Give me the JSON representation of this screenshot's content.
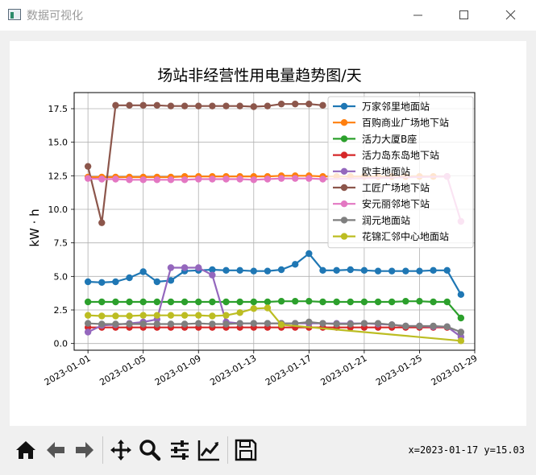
{
  "window": {
    "title": "数据可视化"
  },
  "toolbar": {
    "coordinates": "x=2023-01-17 y=15.03",
    "buttons": [
      "home",
      "back",
      "forward",
      "pan",
      "zoom",
      "configure-subplots",
      "edit-axis",
      "save"
    ]
  },
  "chart_data": {
    "type": "line",
    "title": "场站非经营性用电量趋势图/天",
    "xlabel": "",
    "ylabel": "kW·h",
    "ylabel_display": "kW · h",
    "xlim": [
      "2022-12-31",
      "2023-01-29"
    ],
    "ylim": [
      -0.5,
      18.7
    ],
    "yticks": [
      0.0,
      2.5,
      5.0,
      7.5,
      10.0,
      12.5,
      15.0,
      17.5
    ],
    "ytick_labels": [
      "0.0",
      "2.5",
      "5.0",
      "7.5",
      "10.0",
      "12.5",
      "15.0",
      "17.5"
    ],
    "xticks": [
      "2023-01-01",
      "2023-01-05",
      "2023-01-09",
      "2023-01-13",
      "2023-01-17",
      "2023-01-21",
      "2023-01-25",
      "2023-01-29"
    ],
    "grid": true,
    "legend_position": "upper right",
    "series": [
      {
        "name": "万家邻里地面站",
        "color": "#1f77b4",
        "points": [
          [
            "2023-01-01",
            4.6
          ],
          [
            "2023-01-02",
            4.55
          ],
          [
            "2023-01-03",
            4.6
          ],
          [
            "2023-01-04",
            4.9
          ],
          [
            "2023-01-05",
            5.35
          ],
          [
            "2023-01-06",
            4.6
          ],
          [
            "2023-01-07",
            4.7
          ],
          [
            "2023-01-08",
            5.4
          ],
          [
            "2023-01-09",
            5.45
          ],
          [
            "2023-01-10",
            5.5
          ],
          [
            "2023-01-11",
            5.45
          ],
          [
            "2023-01-12",
            5.45
          ],
          [
            "2023-01-13",
            5.4
          ],
          [
            "2023-01-14",
            5.4
          ],
          [
            "2023-01-15",
            5.5
          ],
          [
            "2023-01-16",
            5.9
          ],
          [
            "2023-01-17",
            6.7
          ],
          [
            "2023-01-18",
            5.45
          ],
          [
            "2023-01-19",
            5.45
          ],
          [
            "2023-01-20",
            5.5
          ],
          [
            "2023-01-21",
            5.45
          ],
          [
            "2023-01-22",
            5.4
          ],
          [
            "2023-01-23",
            5.4
          ],
          [
            "2023-01-24",
            5.4
          ],
          [
            "2023-01-25",
            5.4
          ],
          [
            "2023-01-26",
            5.45
          ],
          [
            "2023-01-27",
            5.45
          ],
          [
            "2023-01-28",
            3.65
          ]
        ]
      },
      {
        "name": "百购商业广场地下站",
        "color": "#ff7f0e",
        "points": [
          [
            "2023-01-01",
            12.4
          ],
          [
            "2023-01-02",
            12.4
          ],
          [
            "2023-01-03",
            12.4
          ],
          [
            "2023-01-04",
            12.4
          ],
          [
            "2023-01-05",
            12.4
          ],
          [
            "2023-01-06",
            12.4
          ],
          [
            "2023-01-07",
            12.4
          ],
          [
            "2023-01-08",
            12.45
          ],
          [
            "2023-01-09",
            12.45
          ],
          [
            "2023-01-10",
            12.45
          ],
          [
            "2023-01-11",
            12.45
          ],
          [
            "2023-01-12",
            12.45
          ],
          [
            "2023-01-13",
            12.45
          ],
          [
            "2023-01-14",
            12.45
          ],
          [
            "2023-01-15",
            12.5
          ],
          [
            "2023-01-16",
            12.5
          ],
          [
            "2023-01-17",
            12.5
          ],
          [
            "2023-01-18",
            12.45
          ],
          [
            "2023-01-19",
            12.45
          ],
          [
            "2023-01-20",
            12.45
          ],
          [
            "2023-01-21",
            12.45
          ],
          [
            "2023-01-22",
            12.45
          ],
          [
            "2023-01-23",
            12.45
          ],
          [
            "2023-01-24",
            12.45
          ],
          [
            "2023-01-25",
            12.45
          ],
          [
            "2023-01-26",
            12.45
          ],
          [
            "2023-01-27",
            12.45
          ]
        ]
      },
      {
        "name": "活力大厦B座",
        "color": "#2ca02c",
        "points": [
          [
            "2023-01-01",
            3.1
          ],
          [
            "2023-01-02",
            3.1
          ],
          [
            "2023-01-03",
            3.1
          ],
          [
            "2023-01-04",
            3.1
          ],
          [
            "2023-01-05",
            3.1
          ],
          [
            "2023-01-06",
            3.1
          ],
          [
            "2023-01-07",
            3.1
          ],
          [
            "2023-01-08",
            3.1
          ],
          [
            "2023-01-09",
            3.1
          ],
          [
            "2023-01-10",
            3.1
          ],
          [
            "2023-01-11",
            3.1
          ],
          [
            "2023-01-12",
            3.1
          ],
          [
            "2023-01-13",
            3.1
          ],
          [
            "2023-01-14",
            3.1
          ],
          [
            "2023-01-15",
            3.15
          ],
          [
            "2023-01-16",
            3.15
          ],
          [
            "2023-01-17",
            3.15
          ],
          [
            "2023-01-18",
            3.1
          ],
          [
            "2023-01-19",
            3.1
          ],
          [
            "2023-01-20",
            3.1
          ],
          [
            "2023-01-21",
            3.1
          ],
          [
            "2023-01-22",
            3.1
          ],
          [
            "2023-01-23",
            3.1
          ],
          [
            "2023-01-24",
            3.15
          ],
          [
            "2023-01-25",
            3.15
          ],
          [
            "2023-01-26",
            3.1
          ],
          [
            "2023-01-27",
            3.1
          ],
          [
            "2023-01-28",
            1.9
          ]
        ]
      },
      {
        "name": "活力岛东岛地下站",
        "color": "#d62728",
        "points": [
          [
            "2023-01-01",
            1.2
          ],
          [
            "2023-01-02",
            1.2
          ],
          [
            "2023-01-03",
            1.2
          ],
          [
            "2023-01-04",
            1.2
          ],
          [
            "2023-01-05",
            1.2
          ],
          [
            "2023-01-06",
            1.2
          ],
          [
            "2023-01-07",
            1.2
          ],
          [
            "2023-01-08",
            1.2
          ],
          [
            "2023-01-09",
            1.2
          ],
          [
            "2023-01-10",
            1.2
          ],
          [
            "2023-01-11",
            1.2
          ],
          [
            "2023-01-12",
            1.2
          ],
          [
            "2023-01-13",
            1.2
          ],
          [
            "2023-01-14",
            1.2
          ],
          [
            "2023-01-15",
            1.2
          ],
          [
            "2023-01-16",
            1.2
          ],
          [
            "2023-01-17",
            1.2
          ],
          [
            "2023-01-18",
            1.2
          ],
          [
            "2023-01-19",
            1.2
          ],
          [
            "2023-01-20",
            1.2
          ],
          [
            "2023-01-21",
            1.2
          ],
          [
            "2023-01-22",
            1.2
          ],
          [
            "2023-01-23",
            1.2
          ],
          [
            "2023-01-24",
            1.2
          ],
          [
            "2023-01-25",
            1.2
          ],
          [
            "2023-01-26",
            1.2
          ],
          [
            "2023-01-27",
            1.2
          ]
        ]
      },
      {
        "name": "欧丰地面站",
        "color": "#9467bd",
        "points": [
          [
            "2023-01-01",
            0.85
          ],
          [
            "2023-01-02",
            1.35
          ],
          [
            "2023-01-03",
            1.4
          ],
          [
            "2023-01-04",
            1.5
          ],
          [
            "2023-01-05",
            1.6
          ],
          [
            "2023-01-06",
            1.8
          ],
          [
            "2023-01-07",
            5.65
          ],
          [
            "2023-01-08",
            5.65
          ],
          [
            "2023-01-09",
            5.65
          ],
          [
            "2023-01-10",
            5.1
          ],
          [
            "2023-01-11",
            1.6
          ],
          [
            "2023-01-12",
            1.5
          ],
          [
            "2023-01-13",
            1.5
          ],
          [
            "2023-01-14",
            1.5
          ],
          [
            "2023-01-15",
            1.5
          ],
          [
            "2023-01-16",
            1.5
          ],
          [
            "2023-01-17",
            1.5
          ],
          [
            "2023-01-18",
            1.5
          ],
          [
            "2023-01-19",
            1.5
          ],
          [
            "2023-01-20",
            1.5
          ],
          [
            "2023-01-21",
            1.5
          ],
          [
            "2023-01-22",
            1.45
          ],
          [
            "2023-01-23",
            1.4
          ],
          [
            "2023-01-24",
            1.3
          ],
          [
            "2023-01-25",
            1.3
          ],
          [
            "2023-01-26",
            1.25
          ],
          [
            "2023-01-27",
            1.25
          ],
          [
            "2023-01-28",
            0.5
          ]
        ]
      },
      {
        "name": "工匠广场地下站",
        "color": "#8c564b",
        "points": [
          [
            "2023-01-01",
            13.2
          ],
          [
            "2023-01-02",
            9.0
          ],
          [
            "2023-01-03",
            17.75
          ],
          [
            "2023-01-04",
            17.75
          ],
          [
            "2023-01-05",
            17.75
          ],
          [
            "2023-01-06",
            17.75
          ],
          [
            "2023-01-07",
            17.7
          ],
          [
            "2023-01-08",
            17.7
          ],
          [
            "2023-01-09",
            17.7
          ],
          [
            "2023-01-10",
            17.7
          ],
          [
            "2023-01-11",
            17.7
          ],
          [
            "2023-01-12",
            17.7
          ],
          [
            "2023-01-13",
            17.65
          ],
          [
            "2023-01-14",
            17.7
          ],
          [
            "2023-01-15",
            17.85
          ],
          [
            "2023-01-16",
            17.85
          ],
          [
            "2023-01-17",
            17.85
          ],
          [
            "2023-01-18",
            17.75
          ]
        ]
      },
      {
        "name": "安元丽邻地下站",
        "color": "#e377c2",
        "points": [
          [
            "2023-01-01",
            12.3
          ],
          [
            "2023-01-02",
            12.25
          ],
          [
            "2023-01-03",
            12.25
          ],
          [
            "2023-01-04",
            12.2
          ],
          [
            "2023-01-05",
            12.2
          ],
          [
            "2023-01-06",
            12.2
          ],
          [
            "2023-01-07",
            12.2
          ],
          [
            "2023-01-08",
            12.2
          ],
          [
            "2023-01-09",
            12.25
          ],
          [
            "2023-01-10",
            12.25
          ],
          [
            "2023-01-11",
            12.25
          ],
          [
            "2023-01-12",
            12.25
          ],
          [
            "2023-01-13",
            12.2
          ],
          [
            "2023-01-14",
            12.25
          ],
          [
            "2023-01-15",
            12.3
          ],
          [
            "2023-01-16",
            12.3
          ],
          [
            "2023-01-17",
            12.3
          ],
          [
            "2023-01-18",
            12.25
          ],
          [
            "2023-01-27",
            12.45
          ],
          [
            "2023-01-28",
            9.1
          ]
        ]
      },
      {
        "name": "润元地面站",
        "color": "#7f7f7f",
        "points": [
          [
            "2023-01-01",
            1.5
          ],
          [
            "2023-01-02",
            1.45
          ],
          [
            "2023-01-03",
            1.45
          ],
          [
            "2023-01-04",
            1.45
          ],
          [
            "2023-01-05",
            1.45
          ],
          [
            "2023-01-06",
            1.45
          ],
          [
            "2023-01-07",
            1.45
          ],
          [
            "2023-01-08",
            1.45
          ],
          [
            "2023-01-09",
            1.5
          ],
          [
            "2023-01-10",
            1.45
          ],
          [
            "2023-01-11",
            1.45
          ],
          [
            "2023-01-12",
            1.5
          ],
          [
            "2023-01-13",
            1.5
          ],
          [
            "2023-01-14",
            1.5
          ],
          [
            "2023-01-15",
            1.5
          ],
          [
            "2023-01-16",
            1.5
          ],
          [
            "2023-01-17",
            1.6
          ],
          [
            "2023-01-18",
            1.5
          ],
          [
            "2023-01-19",
            1.45
          ],
          [
            "2023-01-20",
            1.45
          ],
          [
            "2023-01-21",
            1.5
          ],
          [
            "2023-01-22",
            1.5
          ],
          [
            "2023-01-23",
            1.4
          ],
          [
            "2023-01-24",
            1.3
          ],
          [
            "2023-01-25",
            1.3
          ],
          [
            "2023-01-26",
            1.3
          ],
          [
            "2023-01-27",
            1.25
          ],
          [
            "2023-01-28",
            0.85
          ]
        ]
      },
      {
        "name": "花锦汇邻中心地面站",
        "color": "#bcbd22",
        "points": [
          [
            "2023-01-01",
            2.1
          ],
          [
            "2023-01-02",
            2.05
          ],
          [
            "2023-01-03",
            2.05
          ],
          [
            "2023-01-04",
            2.05
          ],
          [
            "2023-01-05",
            2.1
          ],
          [
            "2023-01-06",
            2.1
          ],
          [
            "2023-01-07",
            2.1
          ],
          [
            "2023-01-08",
            2.1
          ],
          [
            "2023-01-09",
            2.1
          ],
          [
            "2023-01-10",
            2.05
          ],
          [
            "2023-01-11",
            2.1
          ],
          [
            "2023-01-12",
            2.3
          ],
          [
            "2023-01-13",
            2.6
          ],
          [
            "2023-01-14",
            2.65
          ],
          [
            "2023-01-15",
            1.4
          ],
          [
            "2023-01-28",
            0.2
          ]
        ]
      }
    ]
  }
}
